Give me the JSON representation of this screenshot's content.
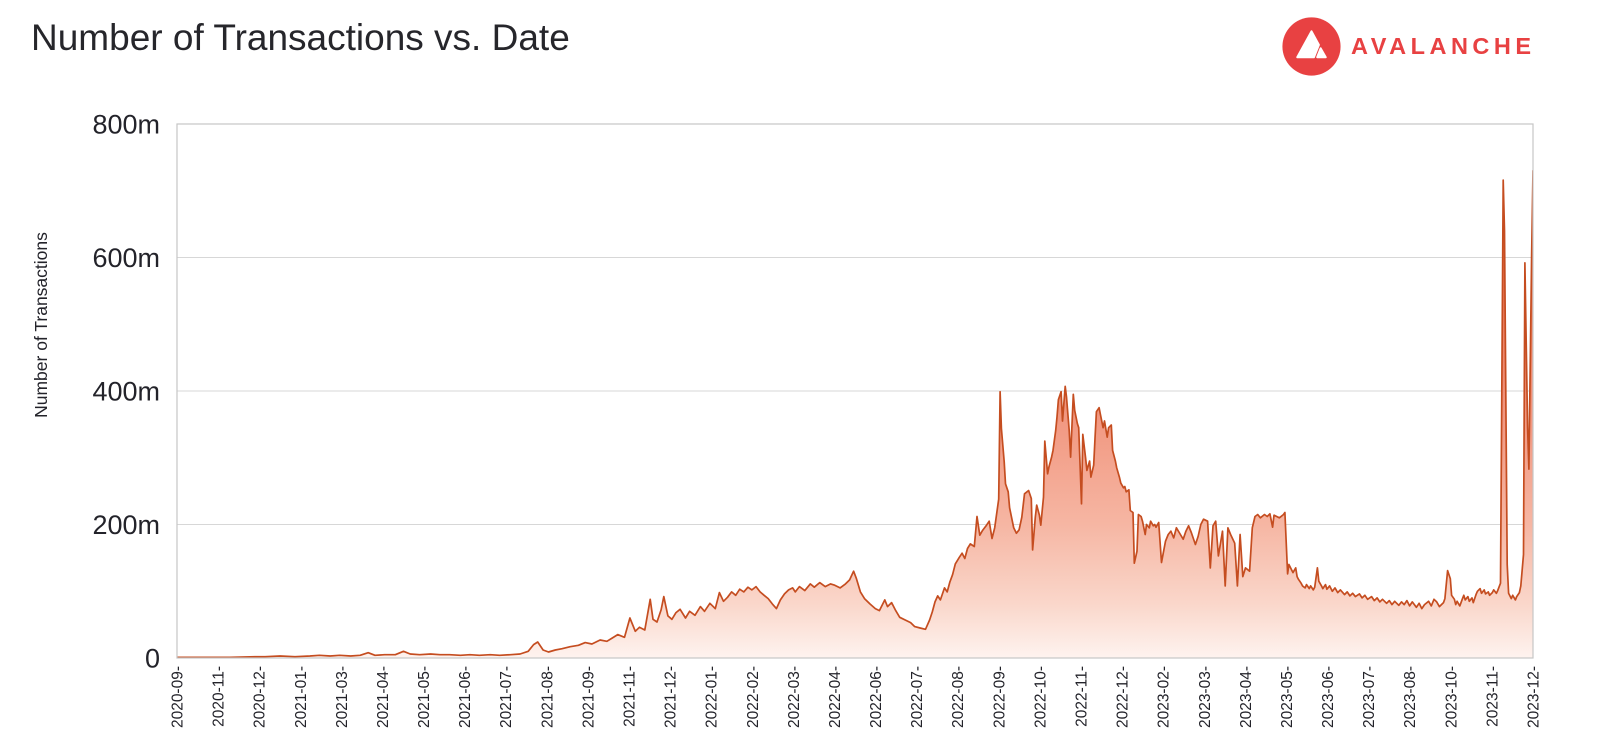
{
  "header": {
    "title": "Number of Transactions vs. Date",
    "logo": {
      "brand": "AVALANCHE",
      "brand_color": "#e84142"
    }
  },
  "chart_data": {
    "type": "area",
    "title": "Number of Transactions vs. Date",
    "xlabel": "",
    "ylabel": "Number of Transactions",
    "unit": "millions of transactions (m = million)",
    "ylim": [
      0,
      800
    ],
    "y_tick_values": [
      0,
      200,
      400,
      600,
      800
    ],
    "y_tick_labels": [
      "0",
      "200m",
      "400m",
      "600m",
      "800m"
    ],
    "x_tick_labels": [
      "2020-09-",
      "2020-11-",
      "2020-12-",
      "2021-01-",
      "2021-03-",
      "2021-04-",
      "2021-05-",
      "2021-06-",
      "2021-07-",
      "2021-08-",
      "2021-09-",
      "2021-11-",
      "2021-12-",
      "2022-01-",
      "2022-02-",
      "2022-03-",
      "2022-04-",
      "2022-06-",
      "2022-07-",
      "2022-08-",
      "2022-09-",
      "2022-10-",
      "2022-11-",
      "2022-12-",
      "2023-02-",
      "2023-03-",
      "2023-04-",
      "2023-05-",
      "2023-06-",
      "2023-07-",
      "2023-08-",
      "2023-10-",
      "2023-11-",
      "2023-12-"
    ],
    "x_range": [
      "2020-09",
      "2023-12"
    ],
    "grid": "horizontal",
    "legend": "none",
    "line_color": "#c54d20",
    "axis_color": "#c6c6c6",
    "grid_color": "#d7d7d7",
    "text_color": "#23232a",
    "fill_gradient_stops": [
      [
        0,
        "#e0512b"
      ],
      [
        0.25,
        "#e96e4a"
      ],
      [
        0.5,
        "#f09078"
      ],
      [
        0.75,
        "#f6b6a3"
      ],
      [
        0.9,
        "#fad7cb"
      ],
      [
        1,
        "#fef3ef"
      ]
    ],
    "points": [
      [
        0.0,
        1
      ],
      [
        0.017,
        1
      ],
      [
        0.039,
        1
      ],
      [
        0.058,
        2
      ],
      [
        0.065,
        2
      ],
      [
        0.076,
        3
      ],
      [
        0.087,
        2
      ],
      [
        0.098,
        3
      ],
      [
        0.105,
        4
      ],
      [
        0.113,
        3
      ],
      [
        0.12,
        4
      ],
      [
        0.128,
        3
      ],
      [
        0.135,
        4
      ],
      [
        0.141,
        8
      ],
      [
        0.146,
        4
      ],
      [
        0.153,
        5
      ],
      [
        0.161,
        5
      ],
      [
        0.167,
        10
      ],
      [
        0.172,
        6
      ],
      [
        0.179,
        5
      ],
      [
        0.187,
        6
      ],
      [
        0.194,
        5
      ],
      [
        0.201,
        5
      ],
      [
        0.209,
        4
      ],
      [
        0.216,
        5
      ],
      [
        0.223,
        4
      ],
      [
        0.231,
        5
      ],
      [
        0.238,
        4
      ],
      [
        0.246,
        5
      ],
      [
        0.253,
        6
      ],
      [
        0.259,
        10
      ],
      [
        0.263,
        20
      ],
      [
        0.266,
        24
      ],
      [
        0.27,
        12
      ],
      [
        0.274,
        9
      ],
      [
        0.279,
        12
      ],
      [
        0.284,
        14
      ],
      [
        0.29,
        17
      ],
      [
        0.296,
        19
      ],
      [
        0.301,
        23
      ],
      [
        0.306,
        21
      ],
      [
        0.312,
        27
      ],
      [
        0.317,
        25
      ],
      [
        0.321,
        30
      ],
      [
        0.325,
        35
      ],
      [
        0.33,
        31
      ],
      [
        0.334,
        60
      ],
      [
        0.338,
        40
      ],
      [
        0.341,
        46
      ],
      [
        0.345,
        42
      ],
      [
        0.349,
        88
      ],
      [
        0.351,
        58
      ],
      [
        0.354,
        54
      ],
      [
        0.357,
        72
      ],
      [
        0.359,
        92
      ],
      [
        0.362,
        63
      ],
      [
        0.365,
        58
      ],
      [
        0.368,
        68
      ],
      [
        0.371,
        73
      ],
      [
        0.375,
        60
      ],
      [
        0.378,
        70
      ],
      [
        0.382,
        64
      ],
      [
        0.386,
        77
      ],
      [
        0.389,
        70
      ],
      [
        0.393,
        82
      ],
      [
        0.397,
        74
      ],
      [
        0.4,
        98
      ],
      [
        0.403,
        85
      ],
      [
        0.406,
        91
      ],
      [
        0.409,
        99
      ],
      [
        0.412,
        94
      ],
      [
        0.415,
        103
      ],
      [
        0.418,
        99
      ],
      [
        0.421,
        106
      ],
      [
        0.424,
        102
      ],
      [
        0.427,
        107
      ],
      [
        0.43,
        99
      ],
      [
        0.433,
        94
      ],
      [
        0.436,
        89
      ],
      [
        0.439,
        81
      ],
      [
        0.442,
        74
      ],
      [
        0.445,
        87
      ],
      [
        0.448,
        96
      ],
      [
        0.451,
        102
      ],
      [
        0.454,
        105
      ],
      [
        0.456,
        99
      ],
      [
        0.459,
        107
      ],
      [
        0.463,
        101
      ],
      [
        0.467,
        111
      ],
      [
        0.47,
        106
      ],
      [
        0.474,
        113
      ],
      [
        0.478,
        107
      ],
      [
        0.482,
        111
      ],
      [
        0.485,
        109
      ],
      [
        0.489,
        105
      ],
      [
        0.493,
        111
      ],
      [
        0.496,
        117
      ],
      [
        0.499,
        130
      ],
      [
        0.501,
        119
      ],
      [
        0.504,
        99
      ],
      [
        0.507,
        89
      ],
      [
        0.511,
        81
      ],
      [
        0.515,
        74
      ],
      [
        0.518,
        71
      ],
      [
        0.522,
        87
      ],
      [
        0.524,
        77
      ],
      [
        0.527,
        83
      ],
      [
        0.53,
        71
      ],
      [
        0.533,
        61
      ],
      [
        0.537,
        57
      ],
      [
        0.541,
        53
      ],
      [
        0.544,
        47
      ],
      [
        0.548,
        45
      ],
      [
        0.552,
        43
      ],
      [
        0.555,
        57
      ],
      [
        0.557,
        69
      ],
      [
        0.559,
        84
      ],
      [
        0.561,
        93
      ],
      [
        0.563,
        87
      ],
      [
        0.566,
        105
      ],
      [
        0.568,
        99
      ],
      [
        0.57,
        114
      ],
      [
        0.572,
        125
      ],
      [
        0.574,
        141
      ],
      [
        0.577,
        151
      ],
      [
        0.579,
        157
      ],
      [
        0.581,
        149
      ],
      [
        0.583,
        164
      ],
      [
        0.585,
        171
      ],
      [
        0.588,
        167
      ],
      [
        0.59,
        212
      ],
      [
        0.592,
        184
      ],
      [
        0.594,
        191
      ],
      [
        0.597,
        199
      ],
      [
        0.599,
        205
      ],
      [
        0.601,
        179
      ],
      [
        0.603,
        195
      ],
      [
        0.606,
        238
      ],
      [
        0.607,
        399
      ],
      [
        0.608,
        344
      ],
      [
        0.61,
        294
      ],
      [
        0.611,
        261
      ],
      [
        0.613,
        249
      ],
      [
        0.614,
        225
      ],
      [
        0.617,
        195
      ],
      [
        0.619,
        187
      ],
      [
        0.621,
        192
      ],
      [
        0.623,
        211
      ],
      [
        0.625,
        246
      ],
      [
        0.628,
        251
      ],
      [
        0.63,
        239
      ],
      [
        0.631,
        162
      ],
      [
        0.633,
        211
      ],
      [
        0.634,
        229
      ],
      [
        0.636,
        214
      ],
      [
        0.637,
        199
      ],
      [
        0.639,
        241
      ],
      [
        0.64,
        325
      ],
      [
        0.642,
        276
      ],
      [
        0.643,
        286
      ],
      [
        0.645,
        301
      ],
      [
        0.646,
        311
      ],
      [
        0.648,
        341
      ],
      [
        0.649,
        361
      ],
      [
        0.65,
        387
      ],
      [
        0.652,
        399
      ],
      [
        0.653,
        355
      ],
      [
        0.655,
        407
      ],
      [
        0.656,
        391
      ],
      [
        0.658,
        341
      ],
      [
        0.659,
        301
      ],
      [
        0.661,
        395
      ],
      [
        0.662,
        371
      ],
      [
        0.664,
        351
      ],
      [
        0.665,
        345
      ],
      [
        0.667,
        231
      ],
      [
        0.668,
        335
      ],
      [
        0.67,
        301
      ],
      [
        0.671,
        281
      ],
      [
        0.673,
        295
      ],
      [
        0.674,
        271
      ],
      [
        0.676,
        289
      ],
      [
        0.677,
        329
      ],
      [
        0.678,
        369
      ],
      [
        0.68,
        375
      ],
      [
        0.681,
        365
      ],
      [
        0.683,
        345
      ],
      [
        0.684,
        355
      ],
      [
        0.686,
        331
      ],
      [
        0.687,
        345
      ],
      [
        0.689,
        349
      ],
      [
        0.69,
        311
      ],
      [
        0.692,
        295
      ],
      [
        0.693,
        285
      ],
      [
        0.695,
        271
      ],
      [
        0.696,
        262
      ],
      [
        0.698,
        255
      ],
      [
        0.699,
        257
      ],
      [
        0.7,
        249
      ],
      [
        0.702,
        252
      ],
      [
        0.703,
        221
      ],
      [
        0.705,
        218
      ],
      [
        0.706,
        142
      ],
      [
        0.708,
        160
      ],
      [
        0.709,
        215
      ],
      [
        0.711,
        212
      ],
      [
        0.712,
        205
      ],
      [
        0.714,
        185
      ],
      [
        0.715,
        200
      ],
      [
        0.717,
        195
      ],
      [
        0.718,
        205
      ],
      [
        0.72,
        198
      ],
      [
        0.721,
        200
      ],
      [
        0.722,
        196
      ],
      [
        0.724,
        203
      ],
      [
        0.726,
        143
      ],
      [
        0.729,
        175
      ],
      [
        0.731,
        185
      ],
      [
        0.733,
        190
      ],
      [
        0.735,
        180
      ],
      [
        0.737,
        195
      ],
      [
        0.74,
        185
      ],
      [
        0.742,
        178
      ],
      [
        0.744,
        190
      ],
      [
        0.746,
        198
      ],
      [
        0.748,
        188
      ],
      [
        0.751,
        170
      ],
      [
        0.753,
        182
      ],
      [
        0.755,
        200
      ],
      [
        0.757,
        208
      ],
      [
        0.76,
        205
      ],
      [
        0.762,
        135
      ],
      [
        0.764,
        198
      ],
      [
        0.766,
        205
      ],
      [
        0.768,
        153
      ],
      [
        0.771,
        190
      ],
      [
        0.773,
        108
      ],
      [
        0.775,
        195
      ],
      [
        0.777,
        185
      ],
      [
        0.78,
        172
      ],
      [
        0.782,
        108
      ],
      [
        0.784,
        185
      ],
      [
        0.786,
        122
      ],
      [
        0.788,
        135
      ],
      [
        0.791,
        130
      ],
      [
        0.793,
        195
      ],
      [
        0.795,
        212
      ],
      [
        0.797,
        215
      ],
      [
        0.799,
        210
      ],
      [
        0.802,
        215
      ],
      [
        0.804,
        212
      ],
      [
        0.806,
        216
      ],
      [
        0.808,
        196
      ],
      [
        0.809,
        214
      ],
      [
        0.811,
        212
      ],
      [
        0.813,
        210
      ],
      [
        0.816,
        215
      ],
      [
        0.817,
        218
      ],
      [
        0.819,
        126
      ],
      [
        0.82,
        140
      ],
      [
        0.822,
        132
      ],
      [
        0.823,
        128
      ],
      [
        0.825,
        135
      ],
      [
        0.826,
        122
      ],
      [
        0.827,
        118
      ],
      [
        0.829,
        112
      ],
      [
        0.83,
        108
      ],
      [
        0.832,
        105
      ],
      [
        0.833,
        110
      ],
      [
        0.835,
        104
      ],
      [
        0.836,
        108
      ],
      [
        0.838,
        102
      ],
      [
        0.839,
        106
      ],
      [
        0.841,
        135
      ],
      [
        0.842,
        115
      ],
      [
        0.844,
        108
      ],
      [
        0.845,
        104
      ],
      [
        0.847,
        110
      ],
      [
        0.848,
        103
      ],
      [
        0.85,
        108
      ],
      [
        0.852,
        100
      ],
      [
        0.854,
        105
      ],
      [
        0.856,
        98
      ],
      [
        0.858,
        102
      ],
      [
        0.861,
        95
      ],
      [
        0.863,
        99
      ],
      [
        0.865,
        93
      ],
      [
        0.867,
        97
      ],
      [
        0.869,
        92
      ],
      [
        0.872,
        96
      ],
      [
        0.874,
        90
      ],
      [
        0.876,
        94
      ],
      [
        0.878,
        88
      ],
      [
        0.881,
        92
      ],
      [
        0.883,
        86
      ],
      [
        0.885,
        90
      ],
      [
        0.887,
        84
      ],
      [
        0.889,
        88
      ],
      [
        0.892,
        82
      ],
      [
        0.894,
        86
      ],
      [
        0.896,
        80
      ],
      [
        0.898,
        85
      ],
      [
        0.901,
        79
      ],
      [
        0.903,
        84
      ],
      [
        0.905,
        80
      ],
      [
        0.907,
        86
      ],
      [
        0.909,
        78
      ],
      [
        0.911,
        84
      ],
      [
        0.914,
        76
      ],
      [
        0.916,
        82
      ],
      [
        0.918,
        74
      ],
      [
        0.92,
        80
      ],
      [
        0.923,
        85
      ],
      [
        0.925,
        78
      ],
      [
        0.927,
        88
      ],
      [
        0.929,
        84
      ],
      [
        0.931,
        77
      ],
      [
        0.934,
        83
      ],
      [
        0.935,
        89
      ],
      [
        0.937,
        131
      ],
      [
        0.939,
        119
      ],
      [
        0.94,
        94
      ],
      [
        0.942,
        88
      ],
      [
        0.943,
        80
      ],
      [
        0.944,
        85
      ],
      [
        0.946,
        78
      ],
      [
        0.948,
        89
      ],
      [
        0.949,
        94
      ],
      [
        0.95,
        87
      ],
      [
        0.952,
        92
      ],
      [
        0.953,
        85
      ],
      [
        0.955,
        90
      ],
      [
        0.956,
        83
      ],
      [
        0.958,
        95
      ],
      [
        0.959,
        100
      ],
      [
        0.961,
        104
      ],
      [
        0.962,
        97
      ],
      [
        0.964,
        102
      ],
      [
        0.965,
        96
      ],
      [
        0.967,
        99
      ],
      [
        0.968,
        94
      ],
      [
        0.97,
        98
      ],
      [
        0.971,
        102
      ],
      [
        0.973,
        97
      ],
      [
        0.974,
        101
      ],
      [
        0.976,
        112
      ],
      [
        0.977,
        400
      ],
      [
        0.978,
        716
      ],
      [
        0.979,
        640
      ],
      [
        0.981,
        140
      ],
      [
        0.982,
        97
      ],
      [
        0.984,
        89
      ],
      [
        0.985,
        94
      ],
      [
        0.987,
        87
      ],
      [
        0.988,
        92
      ],
      [
        0.99,
        98
      ],
      [
        0.991,
        108
      ],
      [
        0.993,
        155
      ],
      [
        0.994,
        592
      ],
      [
        0.996,
        345
      ],
      [
        0.997,
        283
      ],
      [
        0.999,
        600
      ],
      [
        1.0,
        730
      ]
    ]
  }
}
